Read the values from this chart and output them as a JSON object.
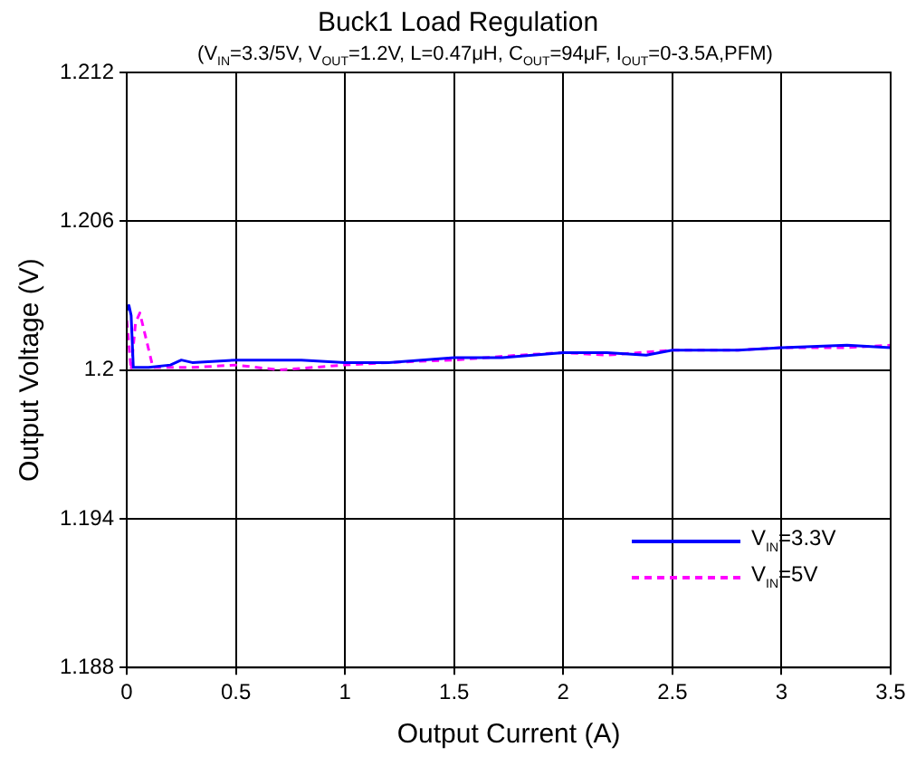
{
  "chart_data": {
    "type": "line",
    "title": "Buck1 Load Regulation",
    "subtitle": "(V$_{IN}$=3.3/5V, V$_{OUT}$=1.2V, L=0.47μH, C$_{OUT}$=94μF, I$_{OUT}$=0-3.5A,PFM)",
    "xlabel": "Output Current (A)",
    "ylabel": "Output Voltage (V)",
    "series": [
      {
        "name": "V$_{IN}$=3.3V",
        "color": "#0000ff",
        "line_style": "solid",
        "x": [
          0,
          0.01,
          0.02,
          0.03,
          0.1,
          0.2,
          0.25,
          0.3,
          0.5,
          0.8,
          1.0,
          1.2,
          1.5,
          1.72,
          2.0,
          2.2,
          2.38,
          2.5,
          2.8,
          3.0,
          3.3,
          3.5
        ],
        "values": [
          1.2024,
          1.2026,
          1.2022,
          1.2001,
          1.2001,
          1.2002,
          1.2004,
          1.2003,
          1.2004,
          1.2004,
          1.2003,
          1.2003,
          1.2005,
          1.2005,
          1.2007,
          1.2007,
          1.2006,
          1.2008,
          1.2008,
          1.2009,
          1.201,
          1.2009
        ]
      },
      {
        "name": "V$_{IN}$=5V",
        "color": "#ff00ff",
        "line_style": "dashed",
        "x": [
          0,
          0.02,
          0.04,
          0.06,
          0.09,
          0.12,
          0.3,
          0.5,
          0.7,
          1.0,
          1.2,
          1.5,
          1.8,
          2.0,
          2.2,
          2.5,
          2.8,
          3.0,
          3.3,
          3.5
        ],
        "values": [
          1.202,
          1.2,
          1.2019,
          1.2023,
          1.2012,
          1.2001,
          1.2001,
          1.2002,
          1.2,
          1.2002,
          1.2003,
          1.2004,
          1.2006,
          1.2007,
          1.2006,
          1.2008,
          1.2008,
          1.2009,
          1.2009,
          1.201
        ]
      }
    ],
    "xlim": [
      0,
      3.5
    ],
    "xticks": [
      0,
      0.5,
      1,
      1.5,
      2,
      2.5,
      3,
      3.5
    ],
    "ylim": [
      1.188,
      1.212
    ],
    "yticks": [
      1.188,
      1.194,
      1.2,
      1.206,
      1.212
    ],
    "grid": true,
    "legend": "bottom right",
    "marker": "none"
  }
}
